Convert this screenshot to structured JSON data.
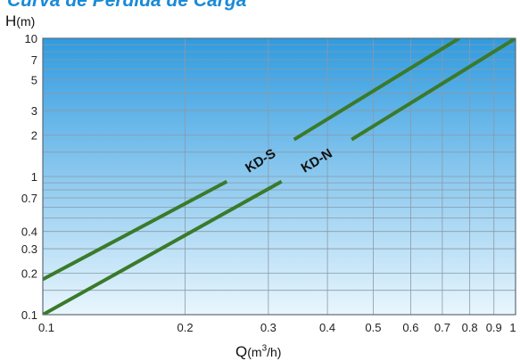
{
  "title": "Curva de Pérdida de Carga",
  "y_axis": {
    "symbol": "H",
    "unit": "(m)"
  },
  "x_axis": {
    "symbol": "Q",
    "unit_prefix": "(m",
    "unit_sup": "3",
    "unit_suffix": "/h)"
  },
  "colors": {
    "line": "#3a7a2a",
    "grid": "#8a9aa8",
    "bg_top": "#2f9be0",
    "bg_bottom": "#e9f6fd",
    "border": "#5a6a78"
  },
  "chart_data": {
    "type": "line",
    "title": "Curva de Pérdida de Carga",
    "xlabel": "Q(m3/h)",
    "ylabel": "H(m)",
    "xscale": "log",
    "yscale": "log",
    "xlim": [
      0.1,
      1
    ],
    "ylim": [
      0.1,
      10
    ],
    "grid": true,
    "x_ticks": [
      {
        "value": 0.1,
        "label": "0.1"
      },
      {
        "value": 0.2,
        "label": "0.2"
      },
      {
        "value": 0.3,
        "label": "0.3"
      },
      {
        "value": 0.4,
        "label": "0.4"
      },
      {
        "value": 0.5,
        "label": "0.5"
      },
      {
        "value": 0.6,
        "label": "0.6"
      },
      {
        "value": 0.7,
        "label": "0.7"
      },
      {
        "value": 0.8,
        "label": "0.8"
      },
      {
        "value": 0.9,
        "label": "0.9"
      },
      {
        "value": 1,
        "label": "1"
      }
    ],
    "y_ticks": [
      {
        "value": 0.1,
        "label": "0.1"
      },
      {
        "value": 0.2,
        "label": "0.2"
      },
      {
        "value": 0.3,
        "label": "0.3"
      },
      {
        "value": 0.4,
        "label": "0.4"
      },
      {
        "value": 0.7,
        "label": "0.7"
      },
      {
        "value": 1,
        "label": "1"
      },
      {
        "value": 2,
        "label": "2"
      },
      {
        "value": 3,
        "label": "3"
      },
      {
        "value": 5,
        "label": "5"
      },
      {
        "value": 7,
        "label": "7"
      },
      {
        "value": 10,
        "label": "10"
      }
    ],
    "y_grid_extra": [
      0.15,
      0.5,
      0.6,
      0.8,
      0.9,
      1.5,
      4,
      6,
      8,
      9
    ],
    "series": [
      {
        "name": "KD-S",
        "segments": [
          [
            [
              0.1,
              0.18
            ],
            [
              0.245,
              0.92
            ]
          ],
          [
            [
              0.34,
              1.85
            ],
            [
              0.76,
              10
            ]
          ]
        ]
      },
      {
        "name": "KD-N",
        "segments": [
          [
            [
              0.1,
              0.1
            ],
            [
              0.32,
              0.92
            ]
          ],
          [
            [
              0.45,
              1.85
            ],
            [
              1,
              10
            ]
          ]
        ]
      }
    ]
  }
}
